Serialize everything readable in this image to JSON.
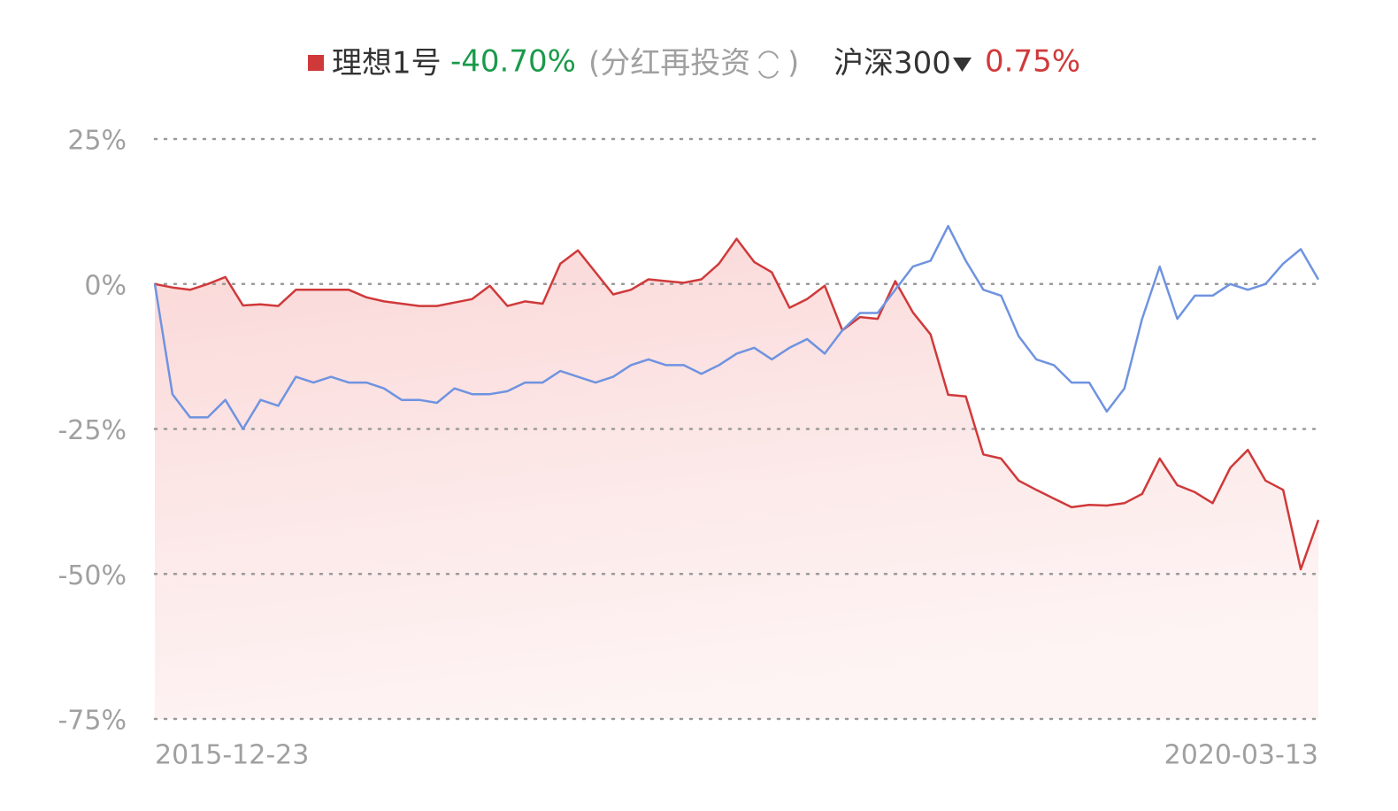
{
  "chart_data": {
    "type": "line",
    "categories": [
      "2015-12-23",
      null,
      null,
      null,
      null,
      null,
      null,
      null,
      null,
      null,
      null,
      null,
      null,
      null,
      null,
      null,
      null,
      null,
      null,
      null,
      null,
      null,
      null,
      null,
      null,
      null,
      null,
      null,
      null,
      null,
      null,
      null,
      null,
      null,
      null,
      null,
      null,
      null,
      null,
      null,
      null,
      null,
      null,
      null,
      null,
      null,
      null,
      null,
      null,
      null,
      null,
      null,
      null,
      null,
      null,
      null,
      null,
      null,
      null,
      null,
      null,
      null,
      null,
      null,
      null,
      null,
      "2020-03-13"
    ],
    "series": [
      {
        "name": "理想1号",
        "color": "#d0393a",
        "area": true,
        "summary": {
          "value": -40.7,
          "label": "-40.70%"
        },
        "summary_color": "#1a9a4a",
        "values": [
          0,
          -0.6,
          -1,
          0,
          1.2,
          -3.7,
          -3.5,
          -3.8,
          -1,
          -1,
          -1,
          -1,
          -2.3,
          -3,
          -3.4,
          -3.8,
          -3.8,
          -3.2,
          -2.6,
          -0.3,
          -3.8,
          -3,
          -3.4,
          3.5,
          5.8,
          2,
          -1.8,
          -1,
          0.8,
          0.5,
          0.2,
          0.8,
          3.5,
          7.8,
          3.8,
          2,
          -4.1,
          -2.6,
          -0.3,
          -8,
          -5.7,
          -6,
          0.5,
          -4.9,
          -8.7,
          -19.1,
          -19.4,
          -29.4,
          -30.1,
          -33.9,
          -35.5,
          -37,
          -38.5,
          -38.1,
          -38.2,
          -37.8,
          -36.2,
          -30.1,
          -34.7,
          -35.9,
          -37.8,
          -31.7,
          -28.6,
          -33.9,
          -35.5,
          -49.2,
          -40.7
        ]
      },
      {
        "name": "沪深300",
        "color": "#6f93e0",
        "area": false,
        "summary": {
          "value": 0.75,
          "label": "0.75%"
        },
        "summary_color": "#d0393a",
        "values": [
          0,
          -19,
          -23,
          -23,
          -20,
          -25,
          -20,
          -21,
          -16,
          -17,
          -16,
          -17,
          -17,
          -18,
          -20,
          -20,
          -20.5,
          -18,
          -19,
          -19,
          -18.5,
          -17,
          -17,
          -15,
          -16,
          -17,
          -16,
          -14,
          -13,
          -14,
          -14,
          -15.5,
          -14,
          -12,
          -11,
          -13,
          -11,
          -9.5,
          -12,
          -8,
          -5,
          -5,
          -1,
          3,
          4,
          10,
          4,
          -1,
          -2,
          -9,
          -13,
          -14,
          -17,
          -17,
          -22,
          -18,
          -6,
          3,
          -6,
          -2,
          -2,
          0,
          -1,
          0,
          3.5,
          6,
          0.75
        ]
      }
    ],
    "legend_note": [
      "(分红再投资",
      ")"
    ],
    "ylim": [
      -75,
      25
    ],
    "yticks": [
      {
        "value": 25,
        "label": "25%"
      },
      {
        "value": 0,
        "label": "0%"
      },
      {
        "value": -25,
        "label": "-25%"
      },
      {
        "value": -50,
        "label": "-50%"
      },
      {
        "value": -75,
        "label": "-75%"
      }
    ],
    "grid": true
  }
}
